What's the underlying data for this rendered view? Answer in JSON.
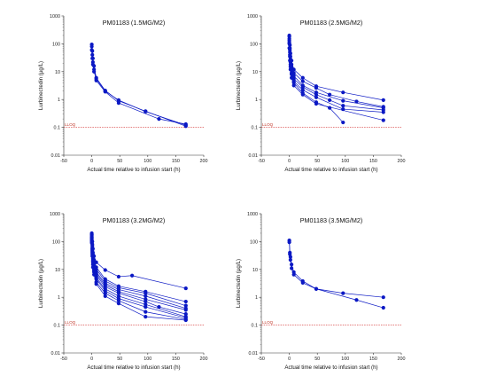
{
  "chart_data": [
    {
      "type": "line",
      "title": "PM01183 (1.5MG/M2)",
      "xlabel": "Actual time relative to infusion start (h)",
      "ylabel": "Lurbinectedin (µg/L)",
      "xlim": [
        -50,
        200
      ],
      "ylim": [
        0.01,
        1000
      ],
      "yscale": "log",
      "xticks": [
        "-50",
        "0",
        "50",
        "100",
        "150",
        "200"
      ],
      "yticks": [
        "0.01",
        "0.1",
        "1",
        "10",
        "100",
        "1000"
      ],
      "reference_line": {
        "label": "LLOQ",
        "y": 0.1
      },
      "marker_color": "#0b18c4",
      "series": [
        {
          "x": [
            0,
            1,
            2,
            4,
            8,
            24,
            48,
            96,
            168
          ],
          "y": [
            95,
            55,
            30,
            16,
            6,
            2.1,
            0.9,
            0.38,
            0.11
          ]
        },
        {
          "x": [
            0,
            1,
            2,
            4,
            8,
            24,
            48,
            120,
            168
          ],
          "y": [
            80,
            40,
            22,
            12,
            4.8,
            1.9,
            0.75,
            0.2,
            0.13
          ]
        },
        {
          "x": [
            0,
            1,
            2,
            4,
            8,
            24,
            48,
            96,
            168
          ],
          "y": [
            60,
            30,
            18,
            10,
            5.5,
            2.0,
            0.95,
            0.37,
            0.12
          ]
        }
      ]
    },
    {
      "type": "line",
      "title": "PM01183 (2.5MG/M2)",
      "xlabel": "Actual time relative to infusion start (h)",
      "ylabel": "Lurbinectedin (µg/L)",
      "xlim": [
        -50,
        200
      ],
      "ylim": [
        0.01,
        1000
      ],
      "yscale": "log",
      "xticks": [
        "-50",
        "0",
        "50",
        "100",
        "150",
        "200"
      ],
      "yticks": [
        "0.01",
        "0.1",
        "1",
        "10",
        "100",
        "1000"
      ],
      "reference_line": {
        "label": "LLOQ",
        "y": 0.1
      },
      "marker_color": "#0b18c4",
      "series": [
        {
          "x": [
            0,
            1,
            2,
            4,
            8,
            24,
            48,
            96,
            168
          ],
          "y": [
            200,
            90,
            45,
            25,
            12,
            6,
            3.0,
            1.8,
            0.95
          ]
        },
        {
          "x": [
            0,
            1,
            2,
            4,
            8,
            24,
            48,
            72,
            120,
            168
          ],
          "y": [
            180,
            70,
            35,
            18,
            9,
            4.5,
            2.6,
            1.5,
            0.85,
            0.55
          ]
        },
        {
          "x": [
            0,
            1,
            2,
            4,
            8,
            24,
            48,
            96,
            168
          ],
          "y": [
            150,
            60,
            28,
            14,
            7,
            3.2,
            1.8,
            0.9,
            0.5
          ]
        },
        {
          "x": [
            0,
            1,
            2,
            4,
            8,
            24,
            48,
            72,
            96,
            168
          ],
          "y": [
            130,
            50,
            22,
            11,
            5.5,
            2.8,
            1.5,
            0.95,
            0.6,
            0.42
          ]
        },
        {
          "x": [
            0,
            1,
            2,
            4,
            8,
            24,
            48,
            96,
            168
          ],
          "y": [
            110,
            40,
            18,
            9,
            4.5,
            2.2,
            1.2,
            0.45,
            0.35
          ]
        },
        {
          "x": [
            0,
            1,
            2,
            4,
            8,
            24,
            48,
            72,
            96
          ],
          "y": [
            100,
            35,
            15,
            8,
            4,
            1.7,
            0.8,
            0.5,
            0.15
          ]
        },
        {
          "x": [
            0,
            1,
            2,
            4,
            8,
            24,
            48,
            168
          ],
          "y": [
            70,
            25,
            12,
            6,
            3.2,
            1.5,
            0.7,
            0.18
          ]
        }
      ]
    },
    {
      "type": "line",
      "title": "PM01183 (3.2MG/M2)",
      "xlabel": "Actual time relative to infusion start (h)",
      "ylabel": "Lurbinectedin (µg/L)",
      "xlim": [
        -50,
        200
      ],
      "ylim": [
        0.01,
        1000
      ],
      "yscale": "log",
      "xticks": [
        "-50",
        "0",
        "50",
        "100",
        "150",
        "200"
      ],
      "yticks": [
        "0.01",
        "0.1",
        "1",
        "10",
        "100",
        "1000"
      ],
      "reference_line": {
        "label": "LLOQ",
        "y": 0.1
      },
      "marker_color": "#0b18c4",
      "series": [
        {
          "x": [
            0,
            1,
            2,
            4,
            8,
            24,
            48,
            72,
            168
          ],
          "y": [
            200,
            100,
            55,
            30,
            18,
            9.5,
            5.5,
            6.0,
            2.1
          ]
        },
        {
          "x": [
            0,
            1,
            2,
            4,
            8,
            24,
            48,
            96,
            168
          ],
          "y": [
            180,
            80,
            40,
            22,
            12,
            4.5,
            2.5,
            1.6,
            0.7
          ]
        },
        {
          "x": [
            0,
            1,
            2,
            4,
            8,
            24,
            48,
            96,
            168
          ],
          "y": [
            170,
            70,
            35,
            18,
            10,
            3.8,
            2.2,
            1.4,
            0.5
          ]
        },
        {
          "x": [
            0,
            1,
            2,
            4,
            8,
            24,
            48,
            96,
            168
          ],
          "y": [
            150,
            60,
            30,
            15,
            8,
            3.2,
            1.9,
            1.1,
            0.4
          ]
        },
        {
          "x": [
            0,
            1,
            2,
            4,
            8,
            24,
            48,
            96,
            168
          ],
          "y": [
            140,
            55,
            25,
            13,
            7,
            2.8,
            1.6,
            0.85,
            0.35
          ]
        },
        {
          "x": [
            0,
            1,
            2,
            4,
            8,
            24,
            48,
            96,
            120,
            168
          ],
          "y": [
            130,
            50,
            22,
            11,
            6,
            2.4,
            1.4,
            0.7,
            0.45,
            0.25
          ]
        },
        {
          "x": [
            0,
            1,
            2,
            4,
            8,
            24,
            48,
            96,
            168
          ],
          "y": [
            120,
            45,
            20,
            10,
            5,
            2.0,
            1.1,
            0.55,
            0.2
          ]
        },
        {
          "x": [
            0,
            1,
            2,
            4,
            8,
            24,
            48,
            96,
            168
          ],
          "y": [
            110,
            40,
            18,
            9,
            4.5,
            1.7,
            0.9,
            0.45,
            0.18
          ]
        },
        {
          "x": [
            0,
            1,
            2,
            4,
            8,
            24,
            48,
            96,
            168
          ],
          "y": [
            100,
            35,
            15,
            8,
            3.5,
            1.4,
            0.75,
            0.3,
            0.16
          ]
        },
        {
          "x": [
            0,
            1,
            2,
            4,
            8,
            24,
            48,
            96,
            168
          ],
          "y": [
            90,
            30,
            12,
            6.5,
            3,
            1.1,
            0.6,
            0.2,
            0.15
          ]
        }
      ]
    },
    {
      "type": "line",
      "title": "PM01183 (3.5MG/M2)",
      "xlabel": "Actual time relative to infusion start (h)",
      "ylabel": "Lurbinectedin (µg/L)",
      "xlim": [
        -50,
        200
      ],
      "ylim": [
        0.01,
        1000
      ],
      "yscale": "log",
      "xticks": [
        "-50",
        "0",
        "50",
        "100",
        "150",
        "200"
      ],
      "yticks": [
        "0.01",
        "0.1",
        "1",
        "10",
        "100",
        "1000"
      ],
      "reference_line": {
        "label": "LLOQ",
        "y": 0.1
      },
      "marker_color": "#0b18c4",
      "series": [
        {
          "x": [
            0,
            1,
            2,
            4,
            8,
            24,
            48,
            96,
            168
          ],
          "y": [
            110,
            40,
            28,
            15,
            8,
            3.8,
            2.0,
            1.4,
            1.0
          ]
        },
        {
          "x": [
            0,
            1,
            2,
            4,
            8,
            24,
            48,
            120,
            168
          ],
          "y": [
            95,
            35,
            22,
            11,
            6.5,
            3.3,
            2.0,
            0.8,
            0.42
          ]
        }
      ]
    }
  ]
}
